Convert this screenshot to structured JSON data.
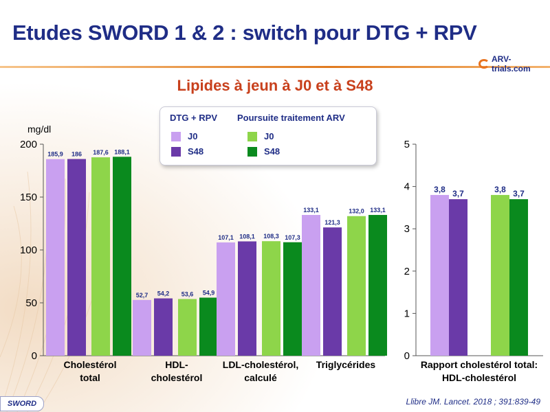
{
  "title": "Etudes SWORD 1 & 2 : switch pour DTG + RPV",
  "logo_text": "ARV-trials.com",
  "subtitle": "Lipides à jeun à J0 et à S48",
  "unit_label": "mg/dl",
  "legend": {
    "group1_title": "DTG + RPV",
    "group2_title": "Poursuite traitement ARV",
    "j0": "J0",
    "s48": "S48"
  },
  "colors": {
    "dtg_j0": "#c9a0f0",
    "dtg_s48": "#6a3aa8",
    "arv_j0": "#8ed54a",
    "arv_s48": "#0a8a1e",
    "title": "#1f2d86",
    "subtitle": "#c8401c"
  },
  "chart_data": [
    {
      "type": "bar",
      "title": "Lipides à jeun à J0 et à S48",
      "ylabel": "mg/dl",
      "ylim": [
        0,
        200
      ],
      "yticks": [
        "0",
        "50",
        "100",
        "150",
        "200"
      ],
      "categories": [
        [
          "Cholestérol",
          "total"
        ],
        [
          "HDL-",
          "cholestérol"
        ],
        [
          "LDL-cholestérol,",
          "calculé"
        ],
        [
          "Triglycérides"
        ]
      ],
      "series": [
        {
          "name": "DTG + RPV J0",
          "values": [
            185.9,
            52.7,
            107.1,
            133.1
          ],
          "labels": [
            "185,9",
            "52,7",
            "107,1",
            "133,1"
          ]
        },
        {
          "name": "DTG + RPV S48",
          "values": [
            186,
            54.2,
            108.1,
            121.3
          ],
          "labels": [
            "186",
            "54,2",
            "108,1",
            "121,3"
          ]
        },
        {
          "name": "Poursuite traitement ARV J0",
          "values": [
            187.6,
            53.6,
            108.3,
            132.0
          ],
          "labels": [
            "187,6",
            "53,6",
            "108,3",
            "132,0"
          ]
        },
        {
          "name": "Poursuite traitement ARV S48",
          "values": [
            188.1,
            54.9,
            107.3,
            133.1
          ],
          "labels": [
            "188,1",
            "54,9",
            "107,3",
            "133,1"
          ]
        }
      ]
    },
    {
      "type": "bar",
      "ylim": [
        0,
        5
      ],
      "yticks": [
        "0",
        "1",
        "2",
        "3",
        "4",
        "5"
      ],
      "categories": [
        [
          "Rapport cholestérol total:",
          "HDL-cholestérol"
        ]
      ],
      "series": [
        {
          "name": "DTG + RPV J0",
          "values": [
            3.8
          ],
          "labels": [
            "3,8"
          ]
        },
        {
          "name": "DTG + RPV S48",
          "values": [
            3.7
          ],
          "labels": [
            "3,7"
          ]
        },
        {
          "name": "Poursuite traitement ARV J0",
          "values": [
            3.8
          ],
          "labels": [
            "3,8"
          ]
        },
        {
          "name": "Poursuite traitement ARV S48",
          "values": [
            3.7
          ],
          "labels": [
            "3,7"
          ]
        }
      ]
    }
  ],
  "footer": {
    "badge": "SWORD",
    "citation": "Llibre JM. Lancet. 2018 ; 391:839-49"
  }
}
